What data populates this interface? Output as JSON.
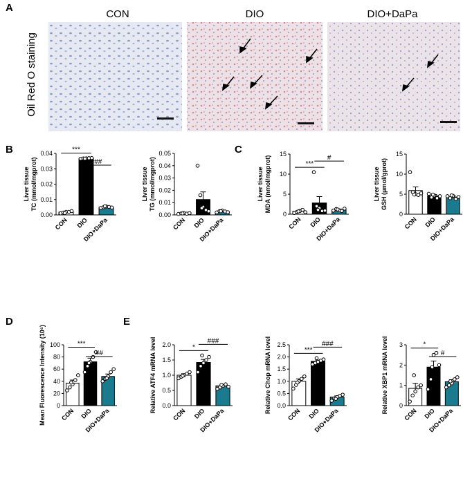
{
  "panel_labels": [
    "A",
    "B",
    "C",
    "D",
    "E"
  ],
  "panel_a": {
    "side_label": "Oil Red O staining",
    "titles": [
      "CON",
      "DIO",
      "DIO+DaPa"
    ]
  },
  "colors": {
    "con": "#ffffff",
    "dio": "#000000",
    "dapa": "#1b7b8e",
    "tissue_con": "#c9d1e4",
    "tissue_dio": "#e1c6cf",
    "tissue_dapa": "#d8ccd7"
  },
  "chart_data": [
    {
      "type": "bar",
      "panel": "B",
      "categories": [
        "CON",
        "DIO",
        "DIO+DaPa"
      ],
      "values": [
        0.0018,
        0.0368,
        0.005
      ],
      "errors": [
        0.0003,
        0.0002,
        0.0004
      ],
      "points": [
        [
          0.001,
          0.0015,
          0.002,
          0.002,
          0.0025,
          0.0012
        ],
        [
          0.0365,
          0.0367,
          0.0368,
          0.0369,
          0.037,
          0.0366
        ],
        [
          0.0045,
          0.005,
          0.0055,
          0.0052,
          0.0048,
          0.0056
        ]
      ],
      "ylabel": [
        "Liver tissue",
        "TC (mmol/mgprot)"
      ],
      "ylim": [
        0,
        0.04
      ],
      "yticks": [
        "0.00",
        "0.01",
        "0.02",
        "0.03",
        "0.04"
      ],
      "significance": [
        {
          "from": 0,
          "to": 1,
          "label": "***"
        },
        {
          "from": 1,
          "to": 2,
          "label": "###"
        }
      ]
    },
    {
      "type": "bar",
      "panel": "B",
      "categories": [
        "CON",
        "DIO",
        "DIO+DaPa"
      ],
      "values": [
        0.0012,
        0.0125,
        0.0028
      ],
      "errors": [
        0.0003,
        0.0062,
        0.0004
      ],
      "points": [
        [
          0.0008,
          0.0012,
          0.0015,
          0.001,
          0.0014,
          0.0012
        ],
        [
          0.04,
          0.016,
          0.0065,
          0.004,
          0.003,
          0.0055
        ],
        [
          0.002,
          0.003,
          0.0035,
          0.0028,
          0.0022,
          0.003
        ]
      ],
      "ylabel": [
        "Liver tissue",
        "TG (mmol/mgprot)"
      ],
      "ylim": [
        0,
        0.05
      ],
      "yticks": [
        "0.00",
        "0.01",
        "0.02",
        "0.03",
        "0.04",
        "0.05"
      ],
      "significance": []
    },
    {
      "type": "bar",
      "panel": "C",
      "categories": [
        "CON",
        "DIO",
        "DIO+DaPa"
      ],
      "values": [
        0.7,
        2.8,
        1.1
      ],
      "errors": [
        0.2,
        1.6,
        0.2
      ],
      "points": [
        [
          0.3,
          0.6,
          0.8,
          1.1,
          0.5,
          0.7
        ],
        [
          10.5,
          2.0,
          1.5,
          0.8,
          0.9,
          1.1
        ],
        [
          0.9,
          1.3,
          1.0,
          0.8,
          1.4,
          1.2
        ]
      ],
      "ylabel": [
        "Liver tissue",
        "MDA (nmol/mgprot)"
      ],
      "ylim": [
        0,
        15
      ],
      "yticks": [
        "0",
        "5",
        "10",
        "15"
      ],
      "significance": [
        {
          "from": 0,
          "to": 1,
          "label": "***"
        },
        {
          "from": 1,
          "to": 2,
          "label": "#"
        }
      ]
    },
    {
      "type": "bar",
      "panel": "C",
      "categories": [
        "CON",
        "DIO",
        "DIO+DaPa"
      ],
      "values": [
        5.9,
        4.6,
        4.3
      ],
      "errors": [
        0.9,
        0.3,
        0.3
      ],
      "points": [
        [
          10.5,
          5.5,
          5.0,
          4.8,
          5.2,
          4.9
        ],
        [
          5.1,
          4.2,
          4.7,
          4.0,
          4.5,
          4.9
        ],
        [
          4.5,
          4.0,
          4.6,
          3.8,
          4.3,
          4.7
        ]
      ],
      "ylabel": [
        "Liver tissue",
        "GSH (μmol/gprot)"
      ],
      "ylim": [
        0,
        15
      ],
      "yticks": [
        "0",
        "5",
        "10",
        "15"
      ],
      "significance": []
    },
    {
      "type": "bar",
      "panel": "D",
      "categories": [
        "CON",
        "DIO",
        "DIO+DaPa"
      ],
      "values": [
        37,
        72,
        48
      ],
      "errors": [
        5,
        6,
        4
      ],
      "points": [
        [
          25,
          30,
          35,
          42,
          50,
          38
        ],
        [
          55,
          65,
          72,
          80,
          88,
          70
        ],
        [
          40,
          44,
          48,
          55,
          60,
          45
        ]
      ],
      "ylabel": [
        "Mean Fluorescence Intensity (10⁶)"
      ],
      "ylim": [
        0,
        100
      ],
      "yticks": [
        "0",
        "20",
        "40",
        "60",
        "80",
        "100"
      ],
      "significance": [
        {
          "from": 0,
          "to": 1,
          "label": "***"
        },
        {
          "from": 1,
          "to": 2,
          "label": "##"
        }
      ]
    },
    {
      "type": "bar",
      "panel": "E",
      "categories": [
        "CON",
        "DIO",
        "DIO+DaPa"
      ],
      "values": [
        1.0,
        1.42,
        0.65
      ],
      "errors": [
        0.05,
        0.1,
        0.04
      ],
      "points": [
        [
          0.9,
          0.95,
          1.0,
          1.05,
          1.1,
          0.98
        ],
        [
          1.1,
          1.3,
          1.4,
          1.5,
          1.6,
          1.65
        ],
        [
          0.55,
          0.6,
          0.65,
          0.7,
          0.62,
          0.68
        ]
      ],
      "ylabel": [
        "Relative ATF4 mRNA level"
      ],
      "ylim": [
        0,
        2.0
      ],
      "yticks": [
        "0.0",
        "0.5",
        "1.0",
        "1.5",
        "2.0"
      ],
      "significance": [
        {
          "from": 0,
          "to": 1,
          "label": "*"
        },
        {
          "from": 1,
          "to": 2,
          "label": "###"
        }
      ]
    },
    {
      "type": "bar",
      "panel": "E",
      "categories": [
        "CON",
        "DIO",
        "DIO+DaPa"
      ],
      "values": [
        1.0,
        1.82,
        0.35
      ],
      "errors": [
        0.1,
        0.05,
        0.05
      ],
      "points": [
        [
          0.7,
          0.85,
          1.0,
          1.1,
          1.2,
          0.95
        ],
        [
          1.7,
          1.75,
          1.8,
          1.85,
          1.9,
          1.95
        ],
        [
          0.2,
          0.3,
          0.35,
          0.4,
          0.45,
          0.28
        ]
      ],
      "ylabel": [
        "Relative Chop mRNA level"
      ],
      "ylim": [
        0,
        2.5
      ],
      "yticks": [
        "0.0",
        "0.5",
        "1.0",
        "1.5",
        "2.0",
        "2.5"
      ],
      "significance": [
        {
          "from": 0,
          "to": 1,
          "label": "***"
        },
        {
          "from": 1,
          "to": 2,
          "label": "###"
        }
      ]
    },
    {
      "type": "bar",
      "panel": "E",
      "categories": [
        "CON",
        "DIO",
        "DIO+DaPa"
      ],
      "values": [
        0.85,
        1.9,
        1.18
      ],
      "errors": [
        0.25,
        0.3,
        0.1
      ],
      "points": [
        [
          0.2,
          0.5,
          0.7,
          0.9,
          1.0,
          1.5
        ],
        [
          0.8,
          1.3,
          2.5,
          2.6,
          2.0,
          1.9
        ],
        [
          0.9,
          1.0,
          1.1,
          1.3,
          1.4,
          1.2
        ]
      ],
      "ylabel": [
        "Relative XBP1 mRNA level"
      ],
      "ylim": [
        0,
        3
      ],
      "yticks": [
        "0",
        "1",
        "2",
        "3"
      ],
      "significance": [
        {
          "from": 0,
          "to": 1,
          "label": "*"
        },
        {
          "from": 1,
          "to": 2,
          "label": "#"
        }
      ]
    }
  ]
}
